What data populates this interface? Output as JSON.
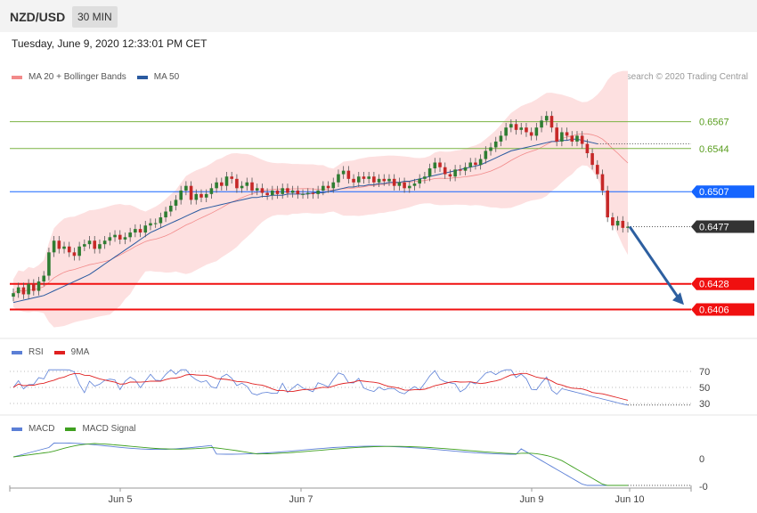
{
  "header": {
    "symbol": "NZD/USD",
    "timeframe": "30 MIN"
  },
  "datetime": "Tuesday, June 9, 2020 12:33:01 PM CET",
  "legend_main": [
    {
      "label": "MA 20 + Bollinger Bands",
      "color": "#f28a8a"
    },
    {
      "label": "MA 50",
      "color": "#2a5aa0"
    }
  ],
  "credit": "Research © 2020 Trading Central",
  "legend_rsi": [
    {
      "label": "RSI",
      "color": "#5b7fd6"
    },
    {
      "label": "9MA",
      "color": "#e02020"
    }
  ],
  "legend_macd": [
    {
      "label": "MACD",
      "color": "#5b7fd6"
    },
    {
      "label": "MACD Signal",
      "color": "#3fa020"
    }
  ],
  "chart_data": [
    {
      "type": "candlestick",
      "ylim": [
        0.6385,
        0.6595
      ],
      "x_ticks": [
        "Jun 5",
        "Jun 7",
        "Jun 9",
        "Jun 10"
      ],
      "price_levels": [
        {
          "value": 0.6567,
          "label": "0.6567",
          "kind": "resistance",
          "color": "#7cb342"
        },
        {
          "value": 0.6544,
          "label": "0.6544",
          "kind": "resistance",
          "color": "#7cb342"
        },
        {
          "value": 0.6507,
          "label": "0.6507",
          "kind": "pivot",
          "color": "#1565ff"
        },
        {
          "value": 0.6477,
          "label": "0.6477",
          "kind": "last",
          "color": "#333333"
        },
        {
          "value": 0.6428,
          "label": "0.6428",
          "kind": "support",
          "color": "#f01010"
        },
        {
          "value": 0.6406,
          "label": "0.6406",
          "kind": "support",
          "color": "#f01010"
        }
      ],
      "bullish_color": "#2e7d32",
      "bearish_color": "#c62828",
      "candles_close": [
        0.642,
        0.6425,
        0.6419,
        0.6428,
        0.6422,
        0.643,
        0.6435,
        0.6455,
        0.6465,
        0.6458,
        0.646,
        0.6455,
        0.6452,
        0.646,
        0.6462,
        0.6465,
        0.6458,
        0.6462,
        0.6465,
        0.6468,
        0.647,
        0.6466,
        0.6468,
        0.6472,
        0.6475,
        0.6472,
        0.6478,
        0.648,
        0.648,
        0.6485,
        0.649,
        0.6495,
        0.65,
        0.6508,
        0.6512,
        0.65,
        0.6505,
        0.6502,
        0.6505,
        0.651,
        0.6515,
        0.6512,
        0.652,
        0.6518,
        0.651,
        0.6512,
        0.6515,
        0.6508,
        0.651,
        0.6506,
        0.6504,
        0.6508,
        0.6505,
        0.651,
        0.6506,
        0.6508,
        0.6505,
        0.6505,
        0.6506,
        0.6505,
        0.6508,
        0.6512,
        0.651,
        0.6515,
        0.6522,
        0.6525,
        0.6518,
        0.6515,
        0.652,
        0.6518,
        0.652,
        0.6515,
        0.6518,
        0.6516,
        0.6518,
        0.6512,
        0.6515,
        0.651,
        0.6512,
        0.6514,
        0.6518,
        0.652,
        0.6527,
        0.6532,
        0.6528,
        0.6522,
        0.652,
        0.6526,
        0.6525,
        0.6528,
        0.6532,
        0.653,
        0.6535,
        0.6542,
        0.6545,
        0.655,
        0.6555,
        0.6562,
        0.6565,
        0.656,
        0.6562,
        0.6558,
        0.6555,
        0.6562,
        0.6568,
        0.6572,
        0.6562,
        0.655,
        0.6558,
        0.6555,
        0.655,
        0.6555,
        0.6548,
        0.654,
        0.653,
        0.6522,
        0.6508,
        0.6485,
        0.6478,
        0.6482,
        0.6476,
        0.6477
      ],
      "ma50": [
        0.6412,
        0.6413,
        0.6414,
        0.6415,
        0.6416,
        0.6417,
        0.6418,
        0.642,
        0.6422,
        0.6424,
        0.6426,
        0.6428,
        0.643,
        0.6432,
        0.6434,
        0.6436,
        0.6439,
        0.6442,
        0.6445,
        0.6448,
        0.6451,
        0.6454,
        0.6457,
        0.646,
        0.6463,
        0.6466,
        0.6469,
        0.6472,
        0.6474,
        0.6476,
        0.6478,
        0.648,
        0.6482,
        0.6484,
        0.6486,
        0.6488,
        0.649,
        0.6492,
        0.6493,
        0.6494,
        0.6495,
        0.6496,
        0.6497,
        0.6498,
        0.6499,
        0.65,
        0.6501,
        0.6502,
        0.6502,
        0.6503,
        0.6503,
        0.6504,
        0.6504,
        0.6504,
        0.6505,
        0.6505,
        0.6505,
        0.6505,
        0.6505,
        0.6506,
        0.6506,
        0.6506,
        0.6507,
        0.6508,
        0.6509,
        0.651,
        0.6511,
        0.6511,
        0.6512,
        0.6512,
        0.6513,
        0.6513,
        0.6514,
        0.6514,
        0.6515,
        0.6515,
        0.6515,
        0.6516,
        0.6516,
        0.6517,
        0.6518,
        0.6519,
        0.652,
        0.6521,
        0.6522,
        0.6523,
        0.6524,
        0.6525,
        0.6526,
        0.6527,
        0.6528,
        0.6529,
        0.653,
        0.6532,
        0.6534,
        0.6536,
        0.6538,
        0.654,
        0.6542,
        0.6543,
        0.6544,
        0.6545,
        0.6546,
        0.6547,
        0.6548,
        0.6549,
        0.655,
        0.655,
        0.6551,
        0.6551,
        0.6552,
        0.6552,
        0.6551,
        0.655,
        0.6549,
        0.6548
      ]
    },
    {
      "type": "line",
      "name": "RSI panel",
      "ylim": [
        20,
        80
      ],
      "y_ticks": [
        70,
        50,
        30
      ],
      "rsi_last": 30,
      "ma_last": 33
    },
    {
      "type": "line",
      "name": "MACD panel",
      "y_ticks": [
        "0",
        "-0"
      ]
    }
  ]
}
